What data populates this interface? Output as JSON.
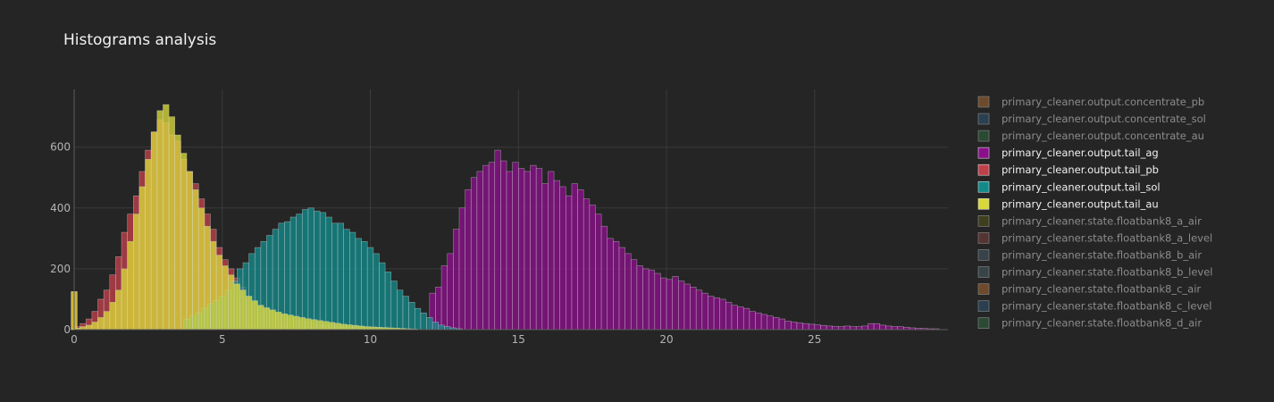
{
  "chart_data": {
    "type": "bar",
    "title": "Histograms analysis",
    "xlabel": "",
    "ylabel": "",
    "xlim": [
      0,
      29.5
    ],
    "ylim": [
      0,
      790
    ],
    "xticks": [
      0,
      5,
      10,
      15,
      20,
      25
    ],
    "yticks": [
      0,
      200,
      400,
      600
    ],
    "grid": true,
    "background": "#252525",
    "legend_position": "right",
    "series": [
      {
        "name": "primary_cleaner.output.concentrate_pb",
        "color": "#8a5a2e",
        "visible": false,
        "x": [],
        "values": []
      },
      {
        "name": "primary_cleaner.output.concentrate_sol",
        "color": "#2e4a62",
        "visible": false,
        "x": [],
        "values": []
      },
      {
        "name": "primary_cleaner.output.concentrate_au",
        "color": "#2e5a3a",
        "visible": false,
        "x": [],
        "values": []
      },
      {
        "name": "primary_cleaner.output.tail_ag",
        "color": "#8b0f8b",
        "visible": true,
        "x": [
          12.1,
          12.3,
          12.5,
          12.7,
          12.9,
          13.1,
          13.3,
          13.5,
          13.7,
          13.9,
          14.1,
          14.3,
          14.5,
          14.7,
          14.9,
          15.1,
          15.3,
          15.5,
          15.7,
          15.9,
          16.1,
          16.3,
          16.5,
          16.7,
          16.9,
          17.1,
          17.3,
          17.5,
          17.7,
          17.9,
          18.1,
          18.3,
          18.5,
          18.7,
          18.9,
          19.1,
          19.3,
          19.5,
          19.7,
          19.9,
          20.1,
          20.3,
          20.5,
          20.7,
          20.9,
          21.1,
          21.3,
          21.5,
          21.7,
          21.9,
          22.1,
          22.3,
          22.5,
          22.7,
          22.9,
          23.1,
          23.3,
          23.5,
          23.7,
          23.9,
          24.1,
          24.3,
          24.5,
          24.7,
          24.9,
          25.1,
          25.3,
          25.5,
          25.7,
          25.9,
          26.1,
          26.3,
          26.5,
          26.7,
          26.9,
          27.1,
          27.3,
          27.5,
          27.7,
          27.9,
          28.1,
          28.3,
          28.5,
          28.7,
          28.9,
          29.1
        ],
        "values": [
          120,
          140,
          210,
          250,
          330,
          400,
          460,
          500,
          520,
          540,
          550,
          590,
          555,
          520,
          550,
          530,
          520,
          540,
          530,
          480,
          520,
          490,
          470,
          440,
          480,
          460,
          430,
          410,
          380,
          340,
          300,
          290,
          270,
          250,
          230,
          210,
          200,
          195,
          185,
          170,
          165,
          175,
          160,
          150,
          140,
          130,
          120,
          110,
          105,
          100,
          90,
          80,
          75,
          70,
          60,
          55,
          50,
          45,
          40,
          35,
          28,
          25,
          22,
          20,
          18,
          16,
          14,
          12,
          11,
          10,
          12,
          10,
          10,
          12,
          20,
          20,
          15,
          12,
          10,
          10,
          8,
          6,
          5,
          4,
          3,
          3
        ],
        "unit_label": ""
      },
      {
        "name": "primary_cleaner.output.tail_pb",
        "color": "#c0404a",
        "visible": true,
        "x": [
          0.0,
          0.1,
          0.3,
          0.5,
          0.7,
          0.9,
          1.1,
          1.3,
          1.5,
          1.7,
          1.9,
          2.1,
          2.3,
          2.5,
          2.7,
          2.9,
          3.1,
          3.3,
          3.5,
          3.7,
          3.9,
          4.1,
          4.3,
          4.5,
          4.7,
          4.9,
          5.1,
          5.3,
          5.5,
          5.7,
          5.9,
          6.1,
          6.3,
          6.5,
          6.7,
          6.9,
          7.1,
          7.3,
          7.5,
          7.7,
          7.9,
          8.1,
          8.3,
          8.5,
          8.7,
          8.9,
          9.1,
          9.3,
          9.5,
          9.7,
          9.9
        ],
        "values": [
          125,
          10,
          20,
          35,
          60,
          100,
          130,
          180,
          240,
          320,
          380,
          440,
          520,
          590,
          650,
          690,
          680,
          640,
          620,
          560,
          520,
          480,
          430,
          380,
          330,
          270,
          230,
          200,
          170,
          140,
          110,
          95,
          80,
          70,
          60,
          52,
          45,
          38,
          32,
          28,
          24,
          20,
          17,
          14,
          12,
          10,
          8,
          6,
          5,
          4,
          3
        ]
      },
      {
        "name": "primary_cleaner.output.tail_sol",
        "color": "#138a8a",
        "visible": true,
        "x": [
          3.8,
          4.0,
          4.2,
          4.4,
          4.6,
          4.8,
          5.0,
          5.2,
          5.4,
          5.6,
          5.8,
          6.0,
          6.2,
          6.4,
          6.6,
          6.8,
          7.0,
          7.2,
          7.4,
          7.6,
          7.8,
          8.0,
          8.2,
          8.4,
          8.6,
          8.8,
          9.0,
          9.2,
          9.4,
          9.6,
          9.8,
          10.0,
          10.2,
          10.4,
          10.6,
          10.8,
          11.0,
          11.2,
          11.4,
          11.6,
          11.8,
          12.0,
          12.2,
          12.4,
          12.6,
          12.8,
          13.0
        ],
        "values": [
          35,
          45,
          55,
          70,
          85,
          95,
          110,
          130,
          160,
          200,
          220,
          250,
          270,
          290,
          310,
          330,
          350,
          355,
          370,
          380,
          395,
          400,
          390,
          385,
          370,
          350,
          350,
          330,
          320,
          300,
          290,
          270,
          250,
          220,
          190,
          160,
          130,
          110,
          90,
          70,
          55,
          40,
          25,
          15,
          10,
          6,
          3
        ]
      },
      {
        "name": "primary_cleaner.output.tail_au",
        "color": "#d8d83a",
        "visible": true,
        "x": [
          0.0,
          0.1,
          0.3,
          0.5,
          0.7,
          0.9,
          1.1,
          1.3,
          1.5,
          1.7,
          1.9,
          2.1,
          2.3,
          2.5,
          2.7,
          2.9,
          3.1,
          3.3,
          3.5,
          3.7,
          3.9,
          4.1,
          4.3,
          4.5,
          4.7,
          4.9,
          5.1,
          5.3,
          5.5,
          5.7,
          5.9,
          6.1,
          6.3,
          6.5,
          6.7,
          6.9,
          7.1,
          7.3,
          7.5,
          7.7,
          7.9,
          8.1,
          8.3,
          8.5,
          8.7,
          8.9,
          9.1,
          9.3,
          9.5,
          9.7,
          9.9,
          10.1,
          10.3,
          10.5,
          10.7,
          10.9,
          11.1,
          11.3,
          11.5
        ],
        "values": [
          125,
          5,
          10,
          15,
          25,
          40,
          60,
          90,
          130,
          200,
          290,
          380,
          470,
          560,
          650,
          720,
          740,
          700,
          640,
          580,
          520,
          460,
          400,
          340,
          290,
          245,
          210,
          180,
          150,
          130,
          110,
          95,
          80,
          72,
          65,
          58,
          52,
          48,
          44,
          40,
          36,
          33,
          30,
          27,
          24,
          21,
          18,
          16,
          14,
          12,
          10,
          9,
          8,
          7,
          6,
          5,
          4,
          3,
          2
        ]
      },
      {
        "name": "primary_cleaner.state.floatbank8_a_air",
        "color": "#4a4a1e",
        "visible": false,
        "x": [],
        "values": []
      },
      {
        "name": "primary_cleaner.state.floatbank8_a_level",
        "color": "#6a3a3a",
        "visible": false,
        "x": [],
        "values": []
      },
      {
        "name": "primary_cleaner.state.floatbank8_b_air",
        "color": "#3e4e5a",
        "visible": false,
        "x": [],
        "values": []
      },
      {
        "name": "primary_cleaner.state.floatbank8_b_level",
        "color": "#3e5258",
        "visible": false,
        "x": [],
        "values": []
      },
      {
        "name": "primary_cleaner.state.floatbank8_c_air",
        "color": "#8a5a2e",
        "visible": false,
        "x": [],
        "values": []
      },
      {
        "name": "primary_cleaner.state.floatbank8_c_level",
        "color": "#2e4a62",
        "visible": false,
        "x": [],
        "values": []
      },
      {
        "name": "primary_cleaner.state.floatbank8_d_air",
        "color": "#2e5a3a",
        "visible": false,
        "x": [],
        "values": []
      }
    ]
  }
}
